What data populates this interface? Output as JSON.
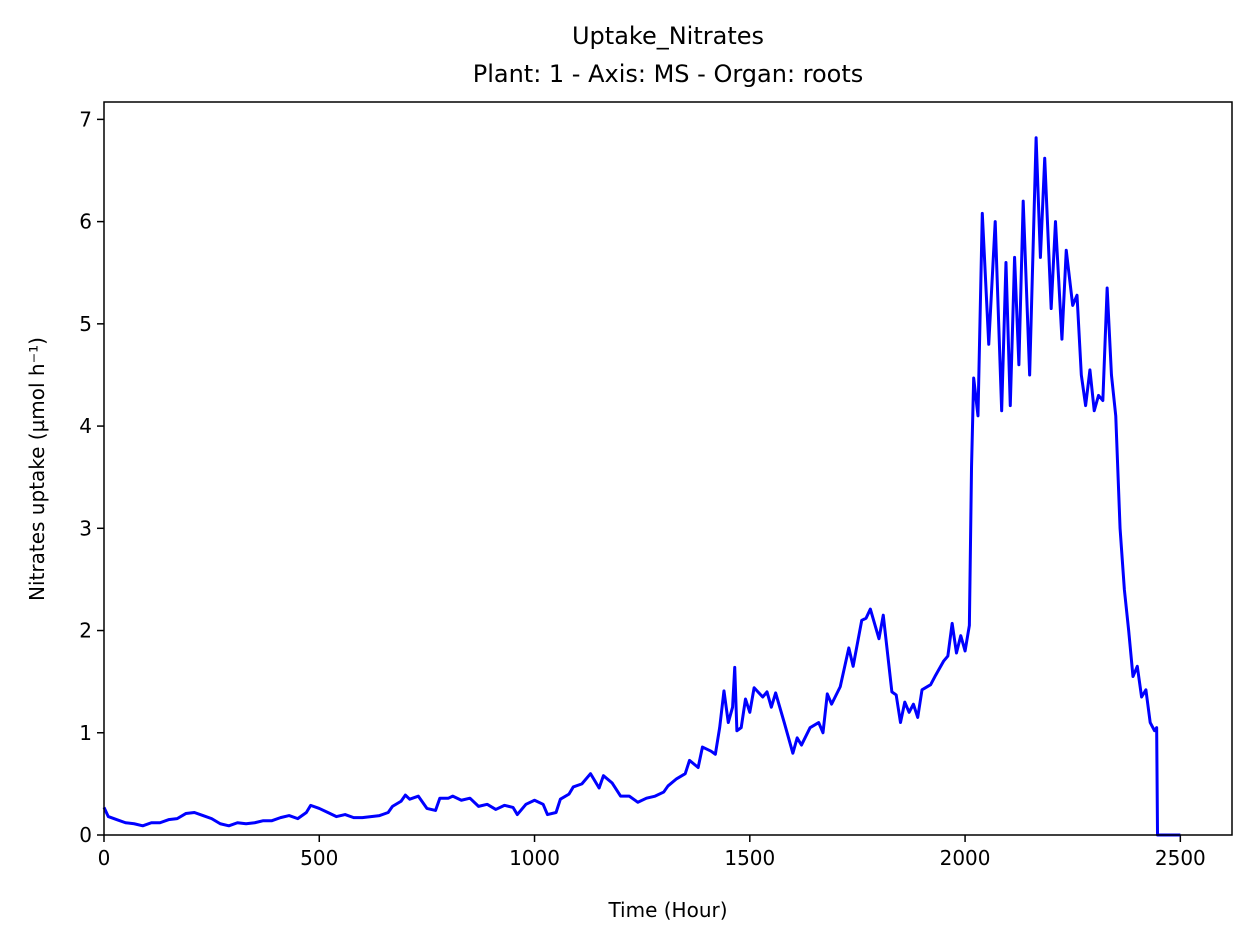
{
  "chart_data": {
    "type": "line",
    "title": "Uptake_Nitrates",
    "subtitle": "Plant: 1 - Axis: MS - Organ: roots",
    "x_label": "Time (Hour)",
    "y_label": "Nitrates uptake (µmol h⁻¹)",
    "xlim": [
      0,
      2620
    ],
    "ylim": [
      0,
      7.17
    ],
    "xticks": [
      0,
      500,
      1000,
      1500,
      2000,
      2500
    ],
    "yticks": [
      0,
      1,
      2,
      3,
      4,
      5,
      6,
      7
    ],
    "series": [
      {
        "color": "#0000ff",
        "x": [
          0,
          10,
          30,
          50,
          70,
          90,
          110,
          130,
          150,
          170,
          190,
          210,
          230,
          250,
          270,
          290,
          310,
          330,
          350,
          370,
          390,
          410,
          430,
          450,
          470,
          480,
          500,
          520,
          540,
          560,
          580,
          600,
          620,
          640,
          660,
          670,
          690,
          700,
          710,
          730,
          750,
          770,
          780,
          800,
          810,
          830,
          850,
          870,
          890,
          910,
          930,
          950,
          960,
          980,
          1000,
          1020,
          1030,
          1050,
          1060,
          1080,
          1090,
          1110,
          1130,
          1150,
          1160,
          1180,
          1200,
          1220,
          1240,
          1260,
          1280,
          1300,
          1310,
          1330,
          1350,
          1360,
          1380,
          1390,
          1410,
          1420,
          1430,
          1440,
          1450,
          1460,
          1465,
          1470,
          1480,
          1490,
          1500,
          1510,
          1530,
          1540,
          1550,
          1560,
          1580,
          1600,
          1610,
          1620,
          1640,
          1660,
          1670,
          1680,
          1690,
          1710,
          1730,
          1740,
          1760,
          1770,
          1780,
          1800,
          1810,
          1830,
          1840,
          1850,
          1860,
          1870,
          1880,
          1890,
          1900,
          1920,
          1930,
          1950,
          1960,
          1970,
          1980,
          1990,
          2000,
          2010,
          2015,
          2020,
          2030,
          2040,
          2055,
          2070,
          2085,
          2095,
          2105,
          2115,
          2125,
          2135,
          2150,
          2165,
          2175,
          2185,
          2200,
          2210,
          2225,
          2235,
          2250,
          2260,
          2270,
          2280,
          2290,
          2300,
          2310,
          2320,
          2330,
          2340,
          2350,
          2360,
          2370,
          2380,
          2390,
          2400,
          2410,
          2420,
          2430,
          2440,
          2445,
          2447,
          2500
        ],
        "values": [
          0.27,
          0.18,
          0.15,
          0.12,
          0.11,
          0.09,
          0.12,
          0.12,
          0.15,
          0.16,
          0.21,
          0.22,
          0.19,
          0.16,
          0.11,
          0.09,
          0.12,
          0.11,
          0.12,
          0.14,
          0.14,
          0.17,
          0.19,
          0.16,
          0.22,
          0.29,
          0.26,
          0.22,
          0.18,
          0.2,
          0.17,
          0.17,
          0.18,
          0.19,
          0.22,
          0.28,
          0.33,
          0.39,
          0.35,
          0.38,
          0.26,
          0.24,
          0.36,
          0.36,
          0.38,
          0.34,
          0.36,
          0.28,
          0.3,
          0.25,
          0.29,
          0.27,
          0.2,
          0.3,
          0.34,
          0.3,
          0.2,
          0.22,
          0.35,
          0.4,
          0.47,
          0.5,
          0.6,
          0.46,
          0.58,
          0.51,
          0.38,
          0.38,
          0.32,
          0.36,
          0.38,
          0.42,
          0.48,
          0.55,
          0.6,
          0.73,
          0.66,
          0.86,
          0.82,
          0.79,
          1.05,
          1.41,
          1.1,
          1.25,
          1.64,
          1.02,
          1.05,
          1.33,
          1.2,
          1.44,
          1.35,
          1.4,
          1.25,
          1.39,
          1.1,
          0.8,
          0.95,
          0.88,
          1.05,
          1.1,
          1.0,
          1.38,
          1.28,
          1.45,
          1.83,
          1.65,
          2.1,
          2.12,
          2.21,
          1.92,
          2.15,
          1.4,
          1.37,
          1.1,
          1.3,
          1.2,
          1.28,
          1.15,
          1.42,
          1.47,
          1.55,
          1.7,
          1.75,
          2.07,
          1.78,
          1.95,
          1.8,
          2.05,
          3.6,
          4.47,
          4.1,
          6.08,
          4.8,
          6.0,
          4.15,
          5.6,
          4.2,
          5.65,
          4.6,
          6.2,
          4.5,
          6.82,
          5.65,
          6.62,
          5.15,
          6.0,
          4.85,
          5.72,
          5.18,
          5.28,
          4.5,
          4.2,
          4.55,
          4.15,
          4.3,
          4.25,
          5.35,
          4.5,
          4.1,
          3.0,
          2.4,
          2.0,
          1.55,
          1.65,
          1.35,
          1.42,
          1.1,
          1.02,
          1.05,
          0,
          0
        ]
      }
    ]
  }
}
